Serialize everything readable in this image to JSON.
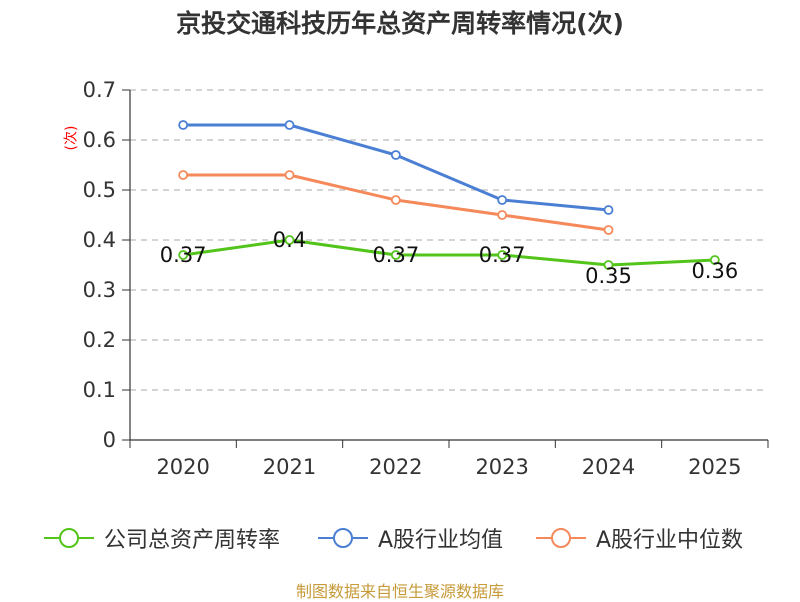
{
  "chart_data": {
    "type": "line",
    "title": "京投交通科技历年总资产周转率情况(次)",
    "ylabel": "(次)",
    "xlabel": "",
    "categories": [
      "2020",
      "2021",
      "2022",
      "2023",
      "2024",
      "2025"
    ],
    "ylim": [
      0,
      0.7
    ],
    "yticks": [
      0,
      0.1,
      0.2,
      0.3,
      0.4,
      0.5,
      0.6,
      0.7
    ],
    "ytick_labels": [
      "0",
      "0.1",
      "0.2",
      "0.3",
      "0.4",
      "0.5",
      "0.6",
      "0.7"
    ],
    "grid": true,
    "legend_position": "bottom",
    "series": [
      {
        "name": "公司总资产周转率",
        "color": "#52c41a",
        "values": [
          0.37,
          0.4,
          0.37,
          0.37,
          0.35,
          0.36
        ],
        "labels": [
          "0.37",
          "0.4",
          "0.37",
          "0.37",
          "0.35",
          "0.36"
        ]
      },
      {
        "name": "A股行业均值",
        "color": "#4a7fd4",
        "values": [
          0.63,
          0.63,
          0.57,
          0.48,
          0.46,
          null
        ]
      },
      {
        "name": "A股行业中位数",
        "color": "#f5895a",
        "values": [
          0.53,
          0.53,
          0.48,
          0.45,
          0.42,
          null
        ]
      }
    ]
  },
  "footer": {
    "source": "制图数据来自恒生聚源数据库"
  }
}
